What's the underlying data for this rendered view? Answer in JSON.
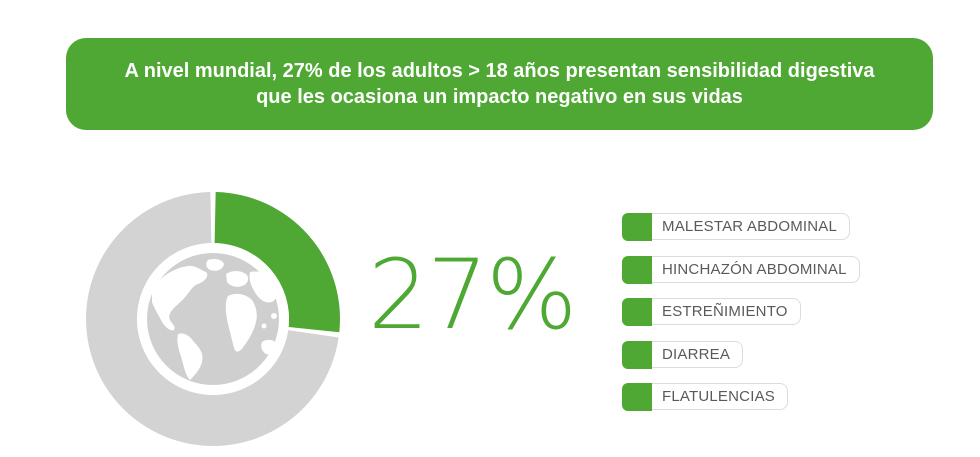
{
  "banner": {
    "line1": "A nivel mundial, 27% de los adultos > 18 años presentan sensibilidad digestiva",
    "line2": "que les ocasiona un impacto negativo en sus vidas"
  },
  "big_number": "27%",
  "legend": {
    "items": [
      "MALESTAR ABDOMINAL",
      "HINCHAZÓN ABDOMINAL",
      "ESTREÑIMIENTO",
      "DIARREA",
      "FLATULENCIAS"
    ]
  },
  "colors": {
    "accent": "#4ea833",
    "ring_gray": "#d3d3d3",
    "globe_gray": "#cfcfcf",
    "label_text": "#5a5a5a"
  },
  "icons": {
    "center": "globe-icon"
  },
  "chart_data": {
    "type": "pie",
    "subtype": "donut",
    "values": [
      27,
      73
    ],
    "labels": [
      "",
      ""
    ],
    "highlight_index": 0
  }
}
